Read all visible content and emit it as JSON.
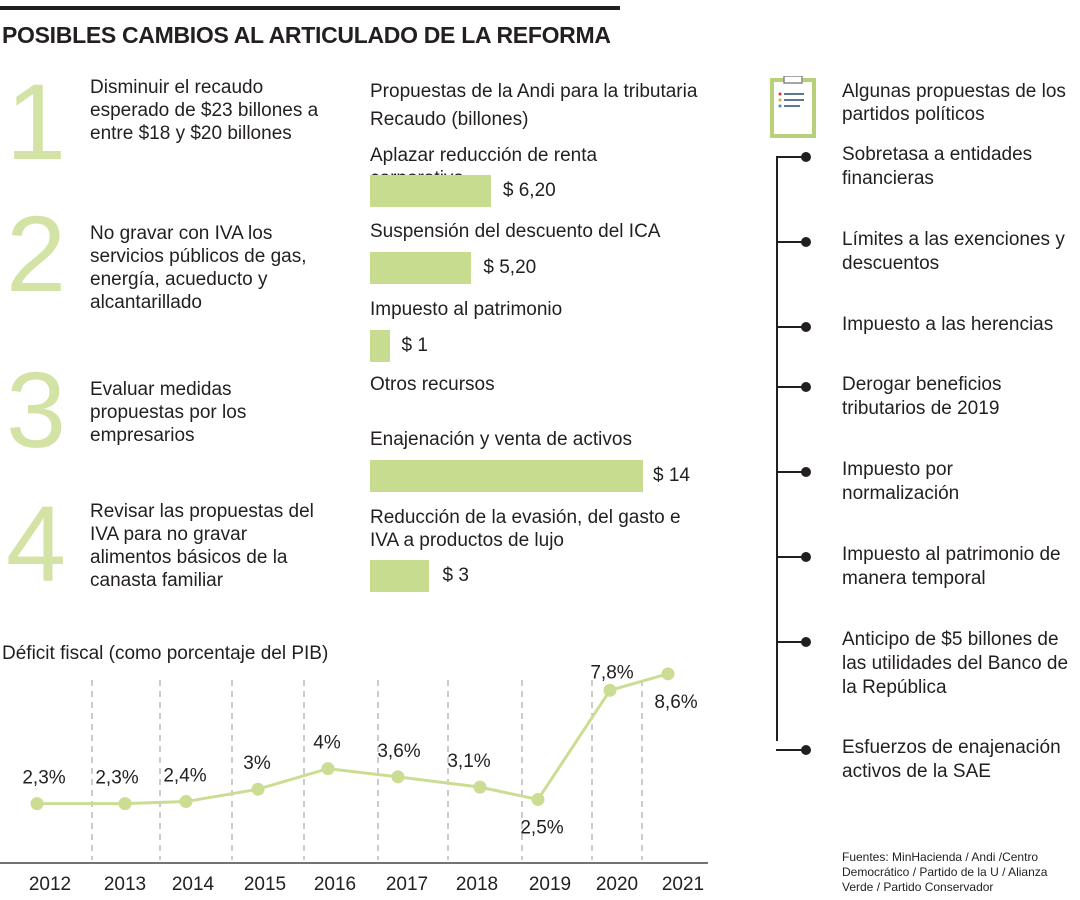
{
  "title": "POSIBLES CAMBIOS AL ARTICULADO DE LA REFORMA",
  "points": [
    {
      "number": "1",
      "text": "Disminuir el recaudo esperado de $23 billones a entre $18 y $20 billones"
    },
    {
      "number": "2",
      "text": "No gravar con IVA los servicios públicos de gas, energía, acueducto y alcantarillado"
    },
    {
      "number": "3",
      "text": "Evaluar medidas propuestas por los empresarios"
    },
    {
      "number": "4",
      "text": "Revisar las propuestas del IVA para no gravar alimentos básicos de la canasta familiar"
    }
  ],
  "andi": {
    "title": "Propuestas de la Andi para la tributaria",
    "subtitle": "Recaudo (billones)",
    "others_title": "Otros recursos"
  },
  "parties": {
    "title": "Algunas propuestas de los partidos políticos",
    "icon": "clipboard-list-icon",
    "items": [
      "Sobretasa a entidades financieras",
      "Límites a las exenciones y descuentos",
      "Impuesto a las herencias",
      "Derogar beneficios tributarios de 2019",
      "Impuesto por normalización",
      "Impuesto al patrimonio de manera temporal",
      "Anticipo de $5 billones de las utilidades del Banco de la República",
      "Esfuerzos de enajenación activos de la SAE"
    ]
  },
  "sources": "Fuentes: MinHacienda / Andi /Centro Democrático / Partido de la U / Alianza Verde / Partido Conservador",
  "colors": {
    "accent": "#c8dc8f",
    "line": "#cbdd92",
    "text": "#231f20"
  },
  "chart_data": [
    {
      "type": "bar",
      "orientation": "horizontal",
      "categories": [
        "Aplazar reducción de renta corporativa",
        "Suspensión del descuento del ICA",
        "Impuesto al patrimonio",
        "Enajenación y venta de activos",
        "Reducción de la evasión, del gasto e IVA a productos de lujo"
      ],
      "values": [
        6.2,
        5.2,
        1,
        14,
        3
      ],
      "labels": [
        "$ 6,20",
        "$ 5,20",
        "$ 1",
        "$ 14",
        "$ 3"
      ]
    },
    {
      "type": "line",
      "title": "Déficit fiscal  (como porcentaje del PIB)",
      "categories": [
        "2012",
        "2013",
        "2014",
        "2015",
        "2016",
        "2017",
        "2018",
        "2019",
        "2020",
        "2021"
      ],
      "values": [
        2.3,
        2.3,
        2.4,
        3,
        4,
        3.6,
        3.1,
        2.5,
        7.8,
        8.6
      ],
      "labels": [
        "2,3%",
        "2,3%",
        "2,4%",
        "3%",
        "4%",
        "3,6%",
        "3,1%",
        "2,5%",
        "7,8%",
        "8,6%"
      ],
      "grid": "vertical dashed"
    }
  ]
}
